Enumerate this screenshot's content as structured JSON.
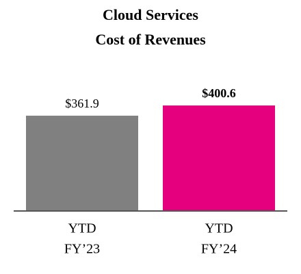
{
  "chart_data": {
    "type": "bar",
    "title": [
      "Cloud Services",
      "Cost of Revenues"
    ],
    "categories": [
      [
        "YTD",
        "FY’23"
      ],
      [
        "YTD",
        "FY’24"
      ]
    ],
    "values": [
      361.9,
      400.6
    ],
    "value_labels": [
      "$361.9",
      "$400.6"
    ],
    "value_label_bold": [
      false,
      true
    ],
    "colors": [
      "#808080",
      "#e5007d"
    ],
    "ylim": [
      0,
      450
    ]
  }
}
